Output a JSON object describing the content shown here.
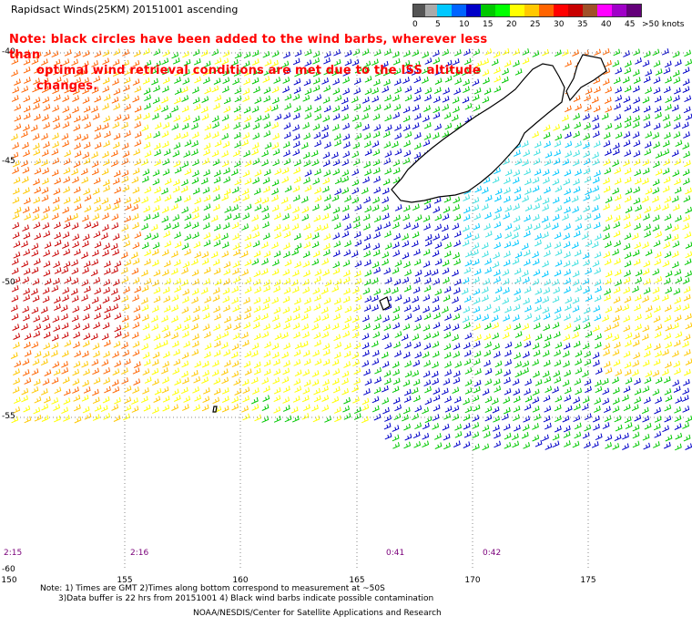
{
  "title": "Rapidsact Winds(25KM) 20151001 ascending",
  "note": {
    "line1": "Note: black circles have been added to the wind barbs, wherever less than",
    "line2": "optimal wind retrieval conditions are met due to the ISS altitude changes."
  },
  "scale": {
    "labels": [
      "0",
      "5",
      "10",
      "15",
      "20",
      "25",
      "30",
      "35",
      "40",
      "45",
      ">50 knots"
    ],
    "colors": [
      "#555555",
      "#aaaaaa",
      "#00c8ff",
      "#0064ff",
      "#0000c8",
      "#00c800",
      "#00ff00",
      "#ffff00",
      "#ffc800",
      "#ff6400",
      "#ff0000",
      "#c80000",
      "#a05028",
      "#ff00ff",
      "#a000c8",
      "#64007a"
    ]
  },
  "map": {
    "lat_labels": [
      "-40",
      "-45",
      "-50",
      "-55",
      "-60"
    ],
    "lon_labels": [
      "150",
      "155",
      "160",
      "165",
      "170",
      "175"
    ],
    "time_labels": [
      "2:15",
      "2:16",
      "0:41",
      "0:42"
    ]
  },
  "footer": {
    "line1": "Note: 1) Times are GMT 2)Times along bottom correspond to measurement at ~50S",
    "line2": "3)Data buffer is 22 hrs from 20151001 4) Black wind barbs indicate possible contamination",
    "line3": "NOAA/NESDIS/Center for Satellite Applications and Research"
  },
  "legend_colors": {
    "lt5": "#555555",
    "c10": "#00c8ff",
    "c15": "#0000c8",
    "c20": "#00c800",
    "c25": "#ffff00",
    "c30": "#ffc800",
    "c35": "#ff6400",
    "c40": "#c80000",
    "c45": "#a05028"
  }
}
